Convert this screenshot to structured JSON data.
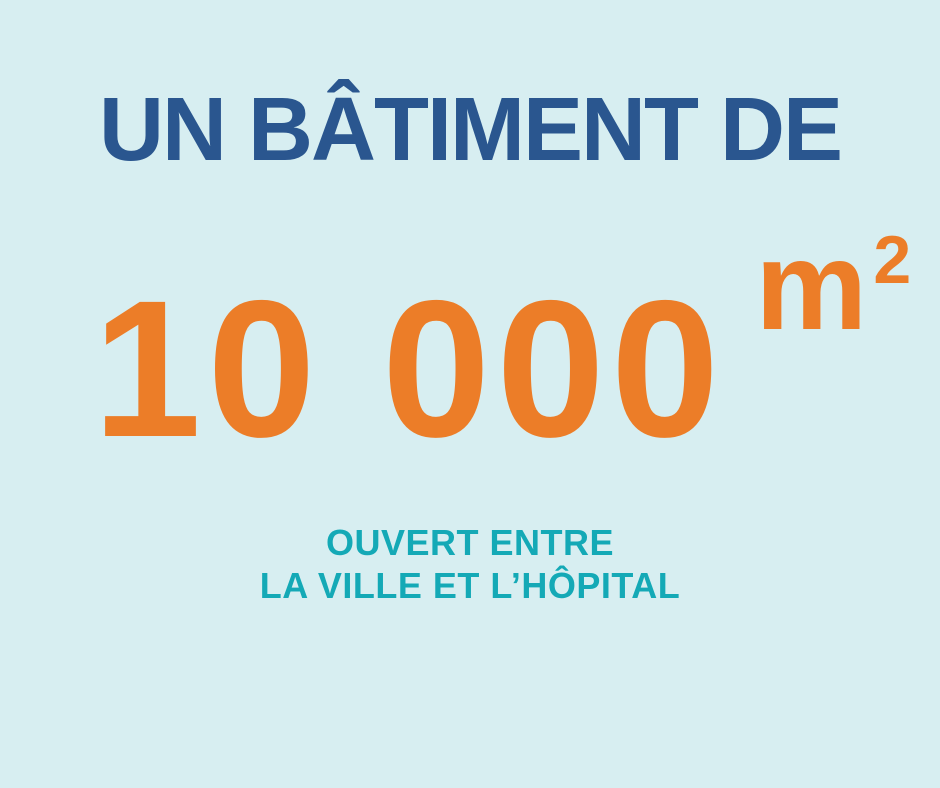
{
  "theme": {
    "bg": "#d7eef1",
    "blue": "#2a568f",
    "orange": "#ec7d28",
    "teal": "#14a9b6"
  },
  "infographic": {
    "heading": "UN BÂTIMENT DE",
    "stat": {
      "value": "10 000",
      "unit": "m",
      "exponent": "2"
    },
    "subtitle_line1": "OUVERT ENTRE",
    "subtitle_line2": "LA VILLE ET L’HÔPITAL"
  }
}
